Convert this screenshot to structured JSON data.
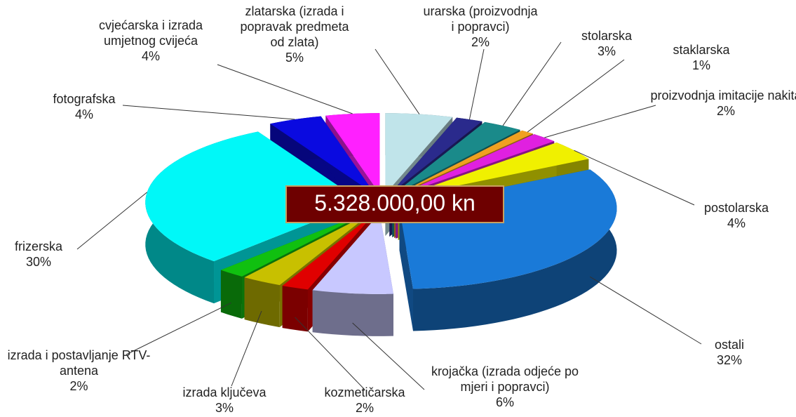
{
  "chart_data": {
    "type": "pie3d",
    "center_label": "5.328.000,00 kn",
    "categories": [
      "zlatarska (izrada i popravak predmeta od zlata)",
      "urarska (proizvodnja i popravci)",
      "stolarska",
      "staklarska",
      "proizvodnja imitacije nakita",
      "postolarska",
      "ostali",
      "krojačka (izrada odjeće po mjeri i popravci)",
      "kozmetičarska",
      "izrada ključeva",
      "izrada i postavljanje RTV-antena",
      "frizerska",
      "fotografska",
      "cvjećarska i izrada umjetnog cvijeća"
    ],
    "values": [
      5,
      2,
      3,
      1,
      2,
      4,
      32,
      6,
      2,
      3,
      2,
      30,
      4,
      4
    ],
    "value_labels": [
      "5%",
      "2%",
      "3%",
      "1%",
      "2%",
      "4%",
      "32%",
      "6%",
      "2%",
      "3%",
      "2%",
      "30%",
      "4%",
      "4%"
    ],
    "colors": [
      "#c0e4ea",
      "#2a2a8c",
      "#1a8a8a",
      "#f0a020",
      "#e020e0",
      "#f0f000",
      "#1a7ad8",
      "#c8c8ff",
      "#e00000",
      "#c8c000",
      "#10c010",
      "#00f8f8",
      "#0a0ae0",
      "#ff20ff"
    ]
  }
}
